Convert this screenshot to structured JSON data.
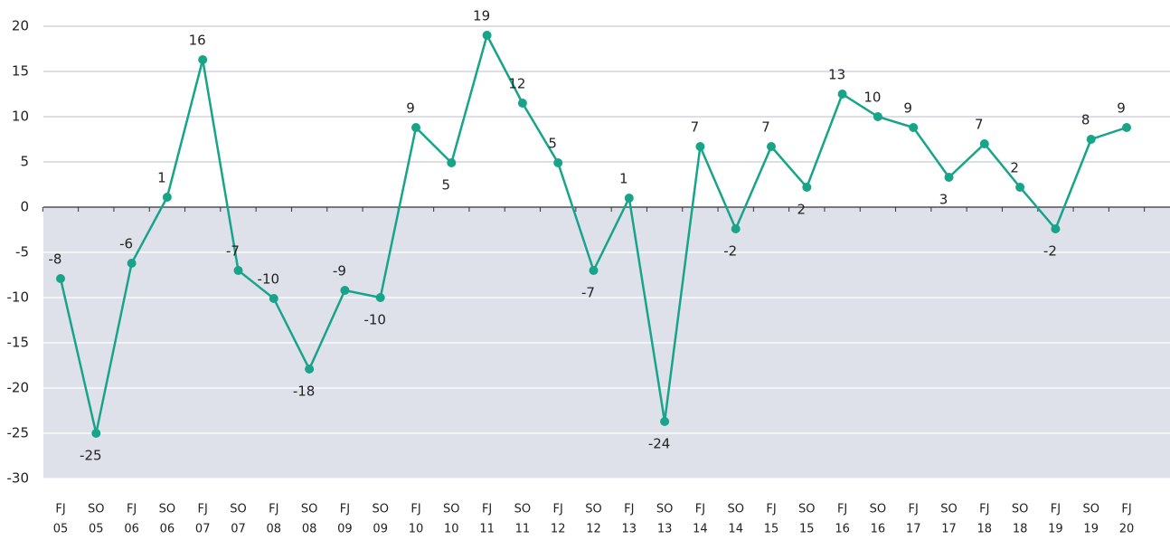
{
  "chart_data": {
    "type": "line",
    "categories": [
      [
        "FJ",
        "05"
      ],
      [
        "SO",
        "05"
      ],
      [
        "FJ",
        "06"
      ],
      [
        "SO",
        "06"
      ],
      [
        "FJ",
        "07"
      ],
      [
        "SO",
        "07"
      ],
      [
        "FJ",
        "08"
      ],
      [
        "SO",
        "08"
      ],
      [
        "FJ",
        "09"
      ],
      [
        "SO",
        "09"
      ],
      [
        "FJ",
        "10"
      ],
      [
        "SO",
        "10"
      ],
      [
        "FJ",
        "11"
      ],
      [
        "SO",
        "11"
      ],
      [
        "FJ",
        "12"
      ],
      [
        "SO",
        "12"
      ],
      [
        "FJ",
        "13"
      ],
      [
        "SO",
        "13"
      ],
      [
        "FJ",
        "14"
      ],
      [
        "SO",
        "14"
      ],
      [
        "FJ",
        "15"
      ],
      [
        "SO",
        "15"
      ],
      [
        "FJ",
        "16"
      ],
      [
        "SO",
        "16"
      ],
      [
        "FJ",
        "17"
      ],
      [
        "SO",
        "17"
      ],
      [
        "FJ",
        "18"
      ],
      [
        "SO",
        "18"
      ],
      [
        "FJ",
        "19"
      ],
      [
        "SO",
        "19"
      ],
      [
        "FJ",
        "20"
      ]
    ],
    "values": [
      -7.9,
      -25.0,
      -6.2,
      1.1,
      16.3,
      -7.0,
      -10.1,
      -17.9,
      -9.2,
      -10.0,
      8.8,
      4.9,
      19.0,
      11.5,
      4.9,
      -7.0,
      1.0,
      -23.7,
      6.7,
      -2.4,
      6.7,
      2.2,
      12.5,
      10.0,
      8.8,
      3.3,
      7.0,
      2.2,
      -2.4,
      7.5,
      8.8
    ],
    "value_labels": [
      "-8",
      "-25",
      "-6",
      "1",
      "16",
      "-7",
      "-10",
      "-18",
      "-9",
      "-10",
      "9",
      "5",
      "19",
      "12",
      "5",
      "-7",
      "1",
      "-24",
      "7",
      "-2",
      "7",
      "2",
      "13",
      "10",
      "9",
      "3",
      "7",
      "2",
      "-2",
      "8",
      "9"
    ],
    "color": "#17a488",
    "ylim": [
      -30,
      20
    ],
    "yticks": [
      -30,
      -25,
      -20,
      -15,
      -10,
      -5,
      0,
      5,
      10,
      15,
      20
    ],
    "grid": true
  }
}
